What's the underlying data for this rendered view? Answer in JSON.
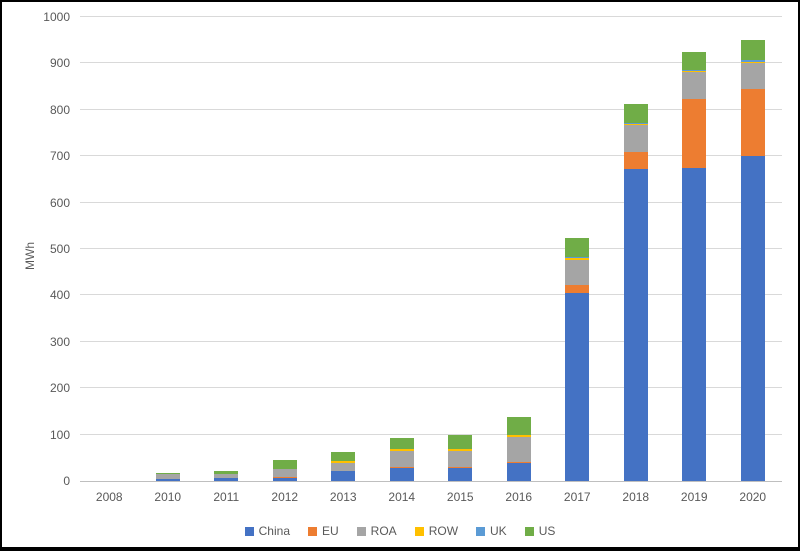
{
  "chart_data": {
    "type": "bar",
    "stacked": true,
    "title": "",
    "xlabel": "",
    "ylabel": "MWh",
    "ylim": [
      0,
      1000
    ],
    "ytick_step": 100,
    "grid": true,
    "legend_position": "bottom",
    "categories": [
      "2008",
      "2010",
      "2011",
      "2012",
      "2013",
      "2014",
      "2015",
      "2016",
      "2017",
      "2018",
      "2019",
      "2020"
    ],
    "series": [
      {
        "name": "China",
        "color": "#4472C4",
        "values": [
          0,
          4,
          6,
          7,
          21,
          28,
          28,
          38,
          406,
          673,
          675,
          700
        ]
      },
      {
        "name": "EU",
        "color": "#ED7D31",
        "values": [
          0,
          1,
          1,
          1,
          1,
          2,
          3,
          4,
          17,
          37,
          148,
          144
        ]
      },
      {
        "name": "ROA",
        "color": "#A5A5A5",
        "values": [
          0,
          10,
          8,
          17,
          17,
          35,
          34,
          52,
          54,
          57,
          58,
          56
        ]
      },
      {
        "name": "ROW",
        "color": "#FFC000",
        "values": [
          0,
          0,
          1,
          1,
          5,
          3,
          4,
          5,
          3,
          3,
          2,
          4
        ]
      },
      {
        "name": "UK",
        "color": "#5B9BD5",
        "values": [
          0,
          0,
          0,
          0,
          0,
          0,
          1,
          1,
          2,
          2,
          2,
          4
        ]
      },
      {
        "name": "US",
        "color": "#70AD47",
        "values": [
          0,
          2,
          6,
          20,
          19,
          25,
          30,
          37,
          42,
          41,
          40,
          42
        ]
      }
    ],
    "totals": [
      0,
      17,
      22,
      46,
      63,
      93,
      100,
      137,
      524,
      813,
      925,
      950
    ],
    "colors": {
      "gridline": "#D9D9D9",
      "axis_line": "#BFBFBF",
      "tick_text": "#595959",
      "frame_border": "#000000"
    }
  }
}
